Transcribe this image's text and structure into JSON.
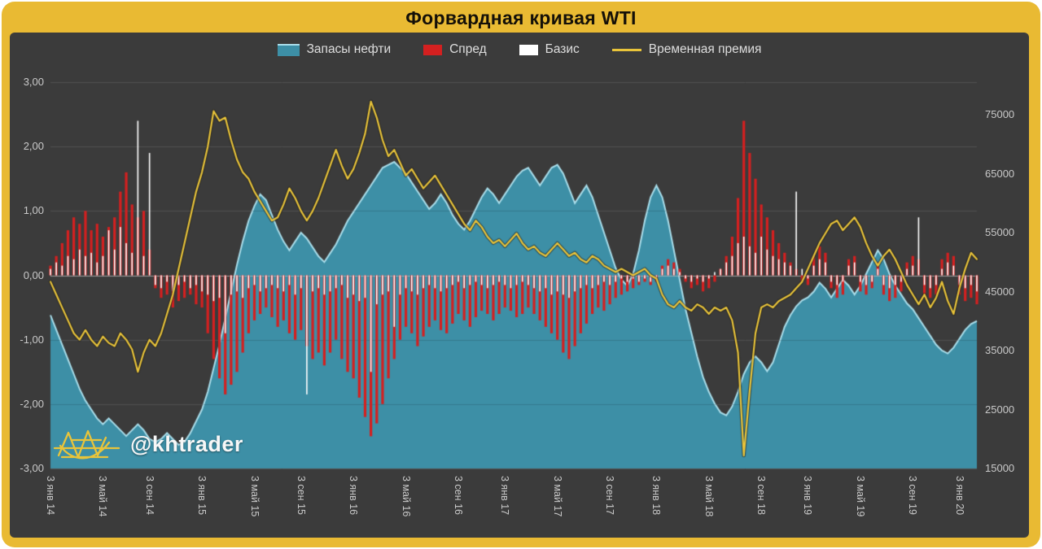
{
  "title": "Форвардная кривая WTI",
  "watermark": {
    "text": "@khtrader"
  },
  "colors": {
    "frame": "#E9BA33",
    "panel": "#3B3B3B",
    "grid": "#5F5F5F",
    "axis_text": "#C9C9C9",
    "title_text": "#141008"
  },
  "chart_data": {
    "type": "combo",
    "title": "Форвардная кривая WTI",
    "x_unit": "biweekly samples, Jan 2014 – Feb 2020",
    "x_tick_labels": [
      "3 янв 14",
      "3 май 14",
      "3 сен 14",
      "3 янв 15",
      "3 май 15",
      "3 сен 15",
      "3 янв 16",
      "3 май 16",
      "3 сен 16",
      "3 янв 17",
      "3 май 17",
      "3 сен 17",
      "3 янв 18",
      "3 май 18",
      "3 сен 18",
      "3 янв 19",
      "3 май 19",
      "3 сен 19",
      "3 янв 20"
    ],
    "x_tick_indices": [
      0,
      9,
      17,
      26,
      35,
      43,
      52,
      61,
      70,
      78,
      87,
      96,
      104,
      113,
      122,
      130,
      139,
      148,
      156
    ],
    "left_axis": {
      "min": -3,
      "max": 3,
      "ticks": [
        "3,00",
        "2,00",
        "1,00",
        "0,00",
        "-1,00",
        "-2,00",
        "-3,00"
      ]
    },
    "right_axis": {
      "min": 15000,
      "max": 75000,
      "ticks": [
        "75000",
        "65000",
        "55000",
        "45000",
        "35000",
        "25000",
        "15000"
      ]
    },
    "grid": true,
    "legend_position": "top-center",
    "series": [
      {
        "name": "Запасы нефти",
        "type": "area",
        "axis": "right",
        "color": "#3D8FA6",
        "stroke": "#A9DDEA",
        "values": [
          41000,
          38500,
          36000,
          33500,
          31000,
          28500,
          26500,
          25000,
          23500,
          22500,
          23500,
          22500,
          21500,
          20500,
          21500,
          22500,
          21500,
          20000,
          19500,
          20000,
          21000,
          20000,
          19000,
          19500,
          21000,
          23000,
          25000,
          28000,
          32000,
          36000,
          40500,
          45000,
          49500,
          53500,
          57000,
          59500,
          61500,
          60500,
          58000,
          55500,
          53500,
          52000,
          53500,
          55000,
          54000,
          52500,
          51000,
          50000,
          51500,
          53000,
          55000,
          57000,
          58500,
          60000,
          61500,
          63000,
          64500,
          66000,
          66500,
          67000,
          66000,
          65000,
          63500,
          62000,
          60500,
          59000,
          60000,
          61500,
          60000,
          58000,
          56500,
          55500,
          57000,
          59000,
          61000,
          62500,
          61500,
          60000,
          61500,
          63000,
          64500,
          65500,
          66000,
          64500,
          63000,
          64500,
          66000,
          66500,
          65000,
          62500,
          60000,
          61500,
          63000,
          61000,
          58000,
          55000,
          52000,
          49000,
          47000,
          46000,
          48000,
          52000,
          57000,
          61000,
          63000,
          61000,
          57000,
          52000,
          47000,
          42000,
          38000,
          34000,
          30500,
          28000,
          26000,
          24500,
          24000,
          25500,
          28000,
          31000,
          33000,
          34000,
          33000,
          31500,
          33000,
          36000,
          39000,
          41000,
          42500,
          43500,
          44000,
          45000,
          46500,
          45500,
          44000,
          45500,
          47000,
          46000,
          44500,
          46000,
          48000,
          50000,
          52000,
          50500,
          48000,
          46000,
          44500,
          43000,
          42000,
          40500,
          39000,
          37500,
          36000,
          35000,
          34500,
          35500,
          37000,
          38500,
          39500,
          40000
        ]
      },
      {
        "name": "Спред",
        "type": "bar",
        "axis": "left",
        "color": "#D42020",
        "values": [
          0.15,
          0.3,
          0.5,
          0.7,
          0.9,
          0.8,
          1.0,
          0.7,
          0.8,
          0.6,
          0.75,
          0.9,
          1.3,
          1.6,
          1.1,
          0.9,
          1.0,
          0.4,
          -0.2,
          -0.35,
          -0.3,
          -0.5,
          -0.4,
          -0.35,
          -0.3,
          -0.45,
          -0.5,
          -0.9,
          -1.3,
          -1.6,
          -1.85,
          -1.7,
          -1.5,
          -1.2,
          -0.9,
          -0.7,
          -0.6,
          -0.5,
          -0.65,
          -0.8,
          -0.7,
          -0.9,
          -1.0,
          -0.85,
          -1.1,
          -1.3,
          -1.2,
          -1.4,
          -1.2,
          -1.0,
          -1.3,
          -1.5,
          -1.6,
          -1.9,
          -2.2,
          -2.5,
          -2.3,
          -2.0,
          -1.6,
          -1.3,
          -1.0,
          -0.8,
          -0.9,
          -1.1,
          -0.95,
          -0.8,
          -0.7,
          -0.85,
          -0.9,
          -0.75,
          -0.6,
          -0.7,
          -0.8,
          -0.65,
          -0.55,
          -0.6,
          -0.7,
          -0.6,
          -0.5,
          -0.55,
          -0.65,
          -0.6,
          -0.5,
          -0.6,
          -0.7,
          -0.8,
          -0.9,
          -1.0,
          -1.2,
          -1.3,
          -1.1,
          -0.9,
          -0.75,
          -0.6,
          -0.5,
          -0.55,
          -0.45,
          -0.35,
          -0.3,
          -0.25,
          -0.2,
          -0.15,
          -0.1,
          -0.15,
          -0.1,
          0.15,
          0.25,
          0.2,
          0.1,
          -0.1,
          -0.2,
          -0.15,
          -0.25,
          -0.2,
          -0.1,
          0.1,
          0.3,
          0.6,
          1.2,
          2.4,
          1.9,
          1.5,
          1.1,
          0.9,
          0.7,
          0.5,
          0.35,
          0.2,
          0.1,
          -0.1,
          -0.15,
          0.3,
          0.45,
          0.35,
          -0.2,
          -0.35,
          -0.3,
          0.25,
          0.3,
          -0.25,
          -0.3,
          -0.2,
          0.2,
          -0.3,
          -0.4,
          -0.35,
          -0.25,
          0.2,
          0.3,
          0.25,
          -0.3,
          -0.35,
          -0.3,
          0.25,
          0.35,
          0.3,
          -0.3,
          -0.4,
          -0.35,
          -0.45
        ]
      },
      {
        "name": "Базис",
        "type": "bar",
        "axis": "left",
        "color": "#FFFFFF",
        "values": [
          0.1,
          0.2,
          0.15,
          0.3,
          0.25,
          0.4,
          0.3,
          0.35,
          0.2,
          0.3,
          0.7,
          0.4,
          0.75,
          0.5,
          0.35,
          2.4,
          0.3,
          1.9,
          -0.15,
          -0.2,
          -0.1,
          -0.25,
          -0.15,
          -0.1,
          -0.2,
          -0.15,
          -0.25,
          -0.3,
          -0.4,
          -0.35,
          -0.9,
          -0.3,
          -0.25,
          -0.35,
          -0.2,
          -0.15,
          -0.25,
          -0.2,
          -0.15,
          -0.2,
          -0.25,
          -0.15,
          -0.3,
          -0.2,
          -1.85,
          -0.25,
          -0.2,
          -0.3,
          -0.25,
          -0.2,
          -0.15,
          -0.35,
          -0.3,
          -0.4,
          -0.35,
          -1.5,
          -0.45,
          -0.3,
          -0.25,
          -0.8,
          -0.3,
          -0.2,
          -0.25,
          -0.3,
          -0.2,
          -0.15,
          -0.2,
          -0.25,
          -0.2,
          -0.15,
          -0.1,
          -0.2,
          -0.15,
          -0.1,
          -0.15,
          -0.2,
          -0.15,
          -0.1,
          -0.15,
          -0.2,
          -0.15,
          -0.1,
          -0.15,
          -0.2,
          -0.25,
          -0.2,
          -0.3,
          -0.25,
          -0.3,
          -0.35,
          -0.25,
          -0.2,
          -0.15,
          -0.2,
          -0.15,
          -0.1,
          -0.15,
          -0.1,
          -0.05,
          -0.1,
          -0.05,
          -0.1,
          -0.05,
          -0.1,
          -0.05,
          0.1,
          0.15,
          0.1,
          0.05,
          -0.05,
          -0.1,
          -0.05,
          -0.1,
          -0.05,
          0.05,
          0.1,
          0.2,
          0.3,
          0.5,
          0.6,
          0.45,
          0.35,
          0.6,
          0.4,
          0.3,
          0.25,
          0.2,
          0.15,
          1.3,
          0.1,
          -0.05,
          0.15,
          0.25,
          0.2,
          -0.1,
          -0.15,
          -0.1,
          0.15,
          0.2,
          -0.1,
          -0.15,
          -0.1,
          0.1,
          -0.15,
          -0.2,
          -0.15,
          -0.1,
          0.1,
          0.15,
          0.9,
          -0.15,
          -0.2,
          -0.15,
          0.1,
          0.2,
          0.15,
          -0.15,
          -0.2,
          -0.15,
          -0.25
        ]
      },
      {
        "name": "Временная премия",
        "type": "line",
        "axis": "left",
        "color": "#E9C43A",
        "values": [
          -0.1,
          -0.3,
          -0.5,
          -0.7,
          -0.9,
          -1.0,
          -0.85,
          -1.0,
          -1.1,
          -0.95,
          -1.05,
          -1.1,
          -0.9,
          -1.0,
          -1.15,
          -1.5,
          -1.2,
          -1.0,
          -1.1,
          -0.9,
          -0.6,
          -0.3,
          0.1,
          0.5,
          0.9,
          1.3,
          1.6,
          2.0,
          2.55,
          2.4,
          2.45,
          2.1,
          1.8,
          1.6,
          1.5,
          1.3,
          1.15,
          1.0,
          0.85,
          0.9,
          1.1,
          1.35,
          1.2,
          1.0,
          0.85,
          1.0,
          1.2,
          1.45,
          1.7,
          1.95,
          1.7,
          1.5,
          1.65,
          1.9,
          2.2,
          2.7,
          2.45,
          2.1,
          1.85,
          1.95,
          1.75,
          1.55,
          1.65,
          1.5,
          1.35,
          1.45,
          1.55,
          1.4,
          1.25,
          1.1,
          0.95,
          0.8,
          0.7,
          0.85,
          0.75,
          0.6,
          0.5,
          0.55,
          0.45,
          0.55,
          0.65,
          0.5,
          0.4,
          0.45,
          0.35,
          0.3,
          0.4,
          0.5,
          0.4,
          0.3,
          0.35,
          0.25,
          0.2,
          0.3,
          0.25,
          0.15,
          0.1,
          0.05,
          0.1,
          0.05,
          0.0,
          0.05,
          0.1,
          0.0,
          -0.05,
          -0.3,
          -0.45,
          -0.5,
          -0.4,
          -0.5,
          -0.55,
          -0.45,
          -0.5,
          -0.6,
          -0.5,
          -0.55,
          -0.5,
          -0.7,
          -1.2,
          -2.8,
          -1.8,
          -0.9,
          -0.5,
          -0.45,
          -0.5,
          -0.4,
          -0.35,
          -0.3,
          -0.2,
          -0.1,
          0.1,
          0.3,
          0.5,
          0.65,
          0.8,
          0.85,
          0.7,
          0.8,
          0.9,
          0.75,
          0.5,
          0.3,
          0.15,
          0.3,
          0.4,
          0.25,
          0.05,
          -0.15,
          -0.3,
          -0.45,
          -0.3,
          -0.5,
          -0.35,
          -0.1,
          -0.4,
          -0.6,
          -0.2,
          0.1,
          0.35,
          0.25
        ]
      }
    ]
  }
}
